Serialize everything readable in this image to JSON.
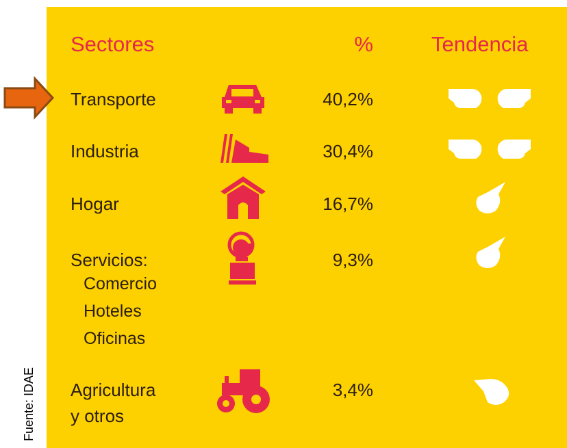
{
  "header": {
    "sector": "Sectores",
    "percent": "%",
    "trend": "Tendencia"
  },
  "rows": [
    {
      "lines": [
        "Transporte"
      ],
      "percent": "40,2%"
    },
    {
      "lines": [
        "Industria"
      ],
      "percent": "30,4%"
    },
    {
      "lines": [
        "Hogar"
      ],
      "percent": "16,7%"
    },
    {
      "lines": [
        "Servicios:"
      ],
      "subitems": [
        "Comercio",
        "Hoteles",
        "Oficinas"
      ],
      "percent": "9,3%"
    },
    {
      "lines": [
        "Agricultura",
        "y otros"
      ],
      "percent": "3,4%"
    }
  ],
  "source": "Fuente: IDAE"
}
